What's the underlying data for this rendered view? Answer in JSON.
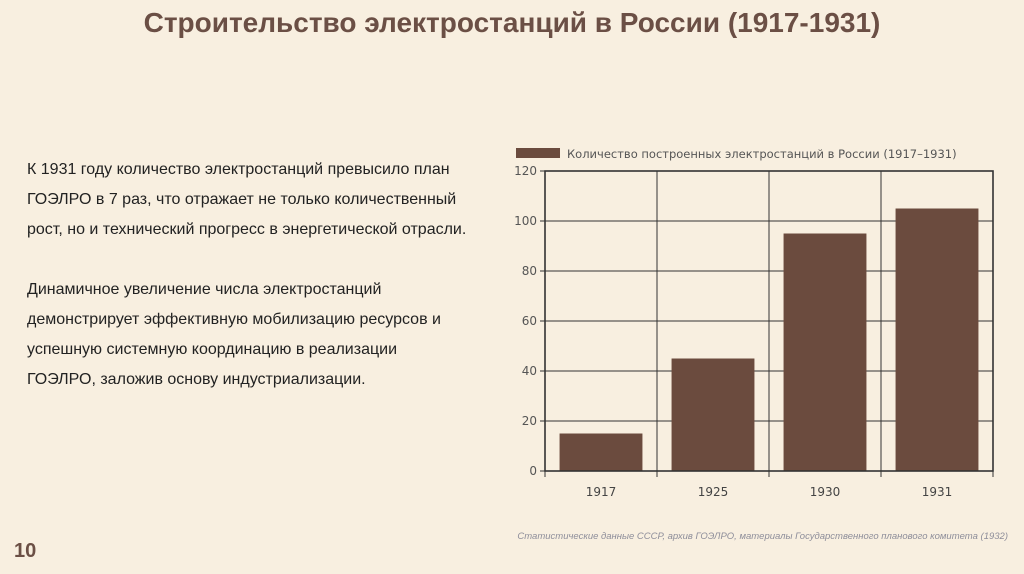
{
  "slide": {
    "title": "Строительство электростанций в России (1917-1931)",
    "paragraphs": [
      "К 1931 году количество электростанций превысило план ГОЭЛРО в 7 раз, что отражает не только количественный рост, но и технический прогресс в энергетической отрасли.",
      "Динамичное увеличение числа электростанций демонстрирует эффективную мобилизацию ресурсов и успешную системную координацию в реализации ГОЭЛРО, заложив основу индустриализации."
    ],
    "source": "Статистические данные СССР, архив ГОЭЛРО, материалы Государственного планового комитета (1932)",
    "page_number": "10"
  },
  "chart_data": {
    "type": "bar",
    "categories": [
      "1917",
      "1925",
      "1930",
      "1931"
    ],
    "series": [
      {
        "name": "Количество построенных электростанций в России (1917–1931)",
        "values": [
          15,
          45,
          95,
          105
        ],
        "color": "#6b4b3e"
      }
    ],
    "xlabel": "",
    "ylabel": "",
    "ylim": [
      0,
      120
    ],
    "yticks": [
      0,
      20,
      40,
      60,
      80,
      100,
      120
    ],
    "grid": true,
    "legend": "top"
  }
}
